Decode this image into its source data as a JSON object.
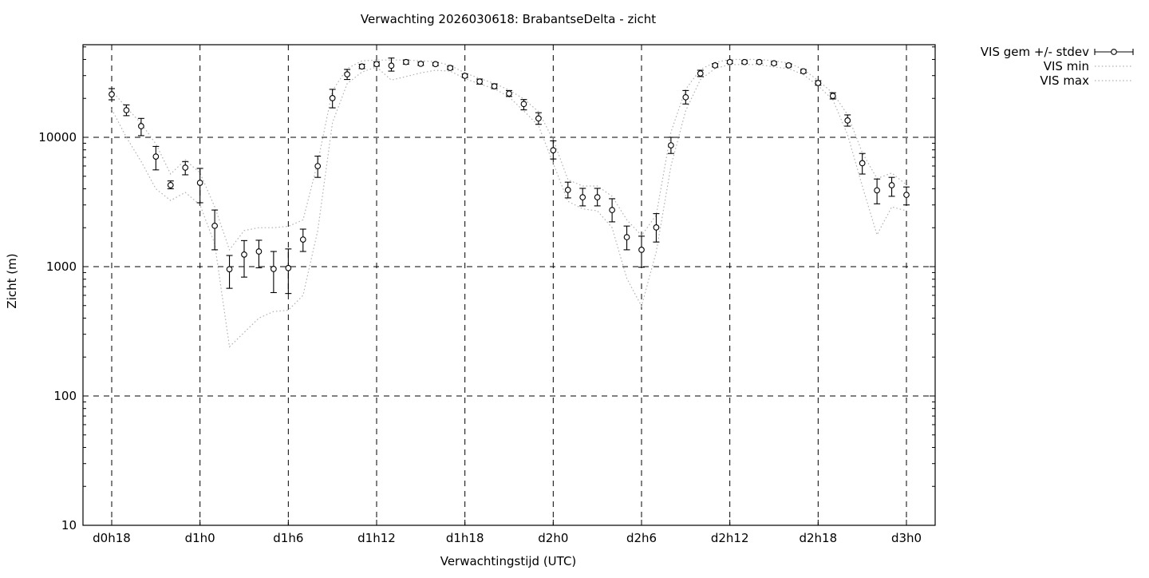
{
  "chart_data": {
    "type": "scatter",
    "subtype": "errorbar-series-with-minmax-dotted-lines",
    "title": "Verwachting 2026030618: BrabantseDelta - zicht",
    "xlabel": "Verwachtingstijd (UTC)",
    "ylabel": "Zicht (m)",
    "y_scale": "log",
    "ylim": [
      10,
      52000
    ],
    "y_ticks": [
      10,
      100,
      1000,
      10000
    ],
    "x_tick_labels": [
      "d0h18",
      "d1h0",
      "d1h6",
      "d1h12",
      "d1h18",
      "d2h0",
      "d2h6",
      "d2h12",
      "d2h18",
      "d3h0"
    ],
    "x_tick_every_hours": 6,
    "hours_span": 54,
    "grid": true,
    "legend_position": "outside-top-right",
    "legend": [
      {
        "label": "VIS gem +/- stdev",
        "style": "errorbar-points",
        "color": "#000000"
      },
      {
        "label": "VIS min",
        "style": "dotted",
        "color": "#b4b4b4"
      },
      {
        "label": "VIS max",
        "style": "dotted",
        "color": "#b4b4b4"
      }
    ],
    "colors": {
      "foreground": "#000000",
      "minmax_dotted": "#b4b4b4",
      "background": "#ffffff"
    },
    "series": {
      "first_point_label": "d0h18",
      "last_point_label": "d3h0",
      "interval_hours": 1,
      "mean": [
        21500,
        16200,
        12200,
        7100,
        4270,
        5830,
        4450,
        2070,
        955,
        1240,
        1310,
        960,
        975,
        1620,
        5990,
        20100,
        30700,
        35300,
        36800,
        35800,
        38200,
        37000,
        36800,
        34400,
        29900,
        27000,
        24800,
        21800,
        18100,
        14000,
        7940,
        3920,
        3440,
        3440,
        2740,
        1690,
        1350,
        2010,
        8670,
        20400,
        31200,
        36000,
        38200,
        38200,
        38200,
        37400,
        36000,
        32400,
        26300,
        20900,
        13500,
        6310,
        3890,
        4260,
        3590
      ],
      "stdev_low": [
        19500,
        14700,
        10300,
        5600,
        4000,
        5130,
        3120,
        1350,
        680,
        830,
        980,
        630,
        620,
        1310,
        4900,
        16900,
        28000,
        34000,
        35500,
        32500,
        36800,
        36000,
        35800,
        33400,
        29000,
        25800,
        23800,
        20700,
        16300,
        12600,
        6800,
        3400,
        2950,
        2950,
        2220,
        1350,
        990,
        1550,
        7500,
        18100,
        29500,
        35000,
        37200,
        37200,
        37200,
        36400,
        35000,
        31400,
        25300,
        19800,
        12200,
        5200,
        3060,
        3500,
        3000
      ],
      "stdev_high": [
        23800,
        17800,
        14000,
        8500,
        4600,
        6500,
        5750,
        2740,
        1220,
        1590,
        1600,
        1310,
        1370,
        1950,
        7150,
        23500,
        33500,
        36700,
        38300,
        41000,
        39600,
        38200,
        37800,
        35500,
        30900,
        28200,
        25900,
        23000,
        19600,
        15500,
        9390,
        4500,
        4030,
        4030,
        3350,
        2060,
        1720,
        2570,
        10000,
        23000,
        33000,
        37100,
        39200,
        39200,
        39200,
        38400,
        37000,
        33400,
        27400,
        22100,
        14900,
        7500,
        4760,
        4900,
        4130
      ],
      "min": [
        16500,
        10000,
        6500,
        4000,
        3250,
        3750,
        3000,
        1500,
        240,
        310,
        400,
        450,
        460,
        600,
        1900,
        13000,
        26000,
        32000,
        35000,
        27700,
        29500,
        31500,
        33000,
        32500,
        28500,
        25800,
        23800,
        20500,
        16000,
        12300,
        6300,
        3200,
        2800,
        2700,
        2000,
        810,
        495,
        1300,
        6000,
        16000,
        28000,
        34000,
        36500,
        36500,
        36500,
        35000,
        34000,
        30500,
        25000,
        19500,
        10500,
        4200,
        1760,
        2900,
        2700
      ],
      "max": [
        23000,
        17000,
        12800,
        8900,
        5200,
        6700,
        5300,
        2900,
        1350,
        1900,
        2000,
        2000,
        2050,
        2300,
        6400,
        23000,
        34000,
        39000,
        39600,
        39600,
        39600,
        39000,
        38500,
        36000,
        31500,
        28500,
        26100,
        23200,
        19800,
        15800,
        9600,
        4700,
        4200,
        4200,
        3500,
        2300,
        1740,
        2500,
        11000,
        23500,
        33500,
        38000,
        40000,
        40000,
        40000,
        39000,
        37500,
        33500,
        27500,
        22000,
        15000,
        7600,
        4800,
        5300,
        4300
      ]
    }
  }
}
